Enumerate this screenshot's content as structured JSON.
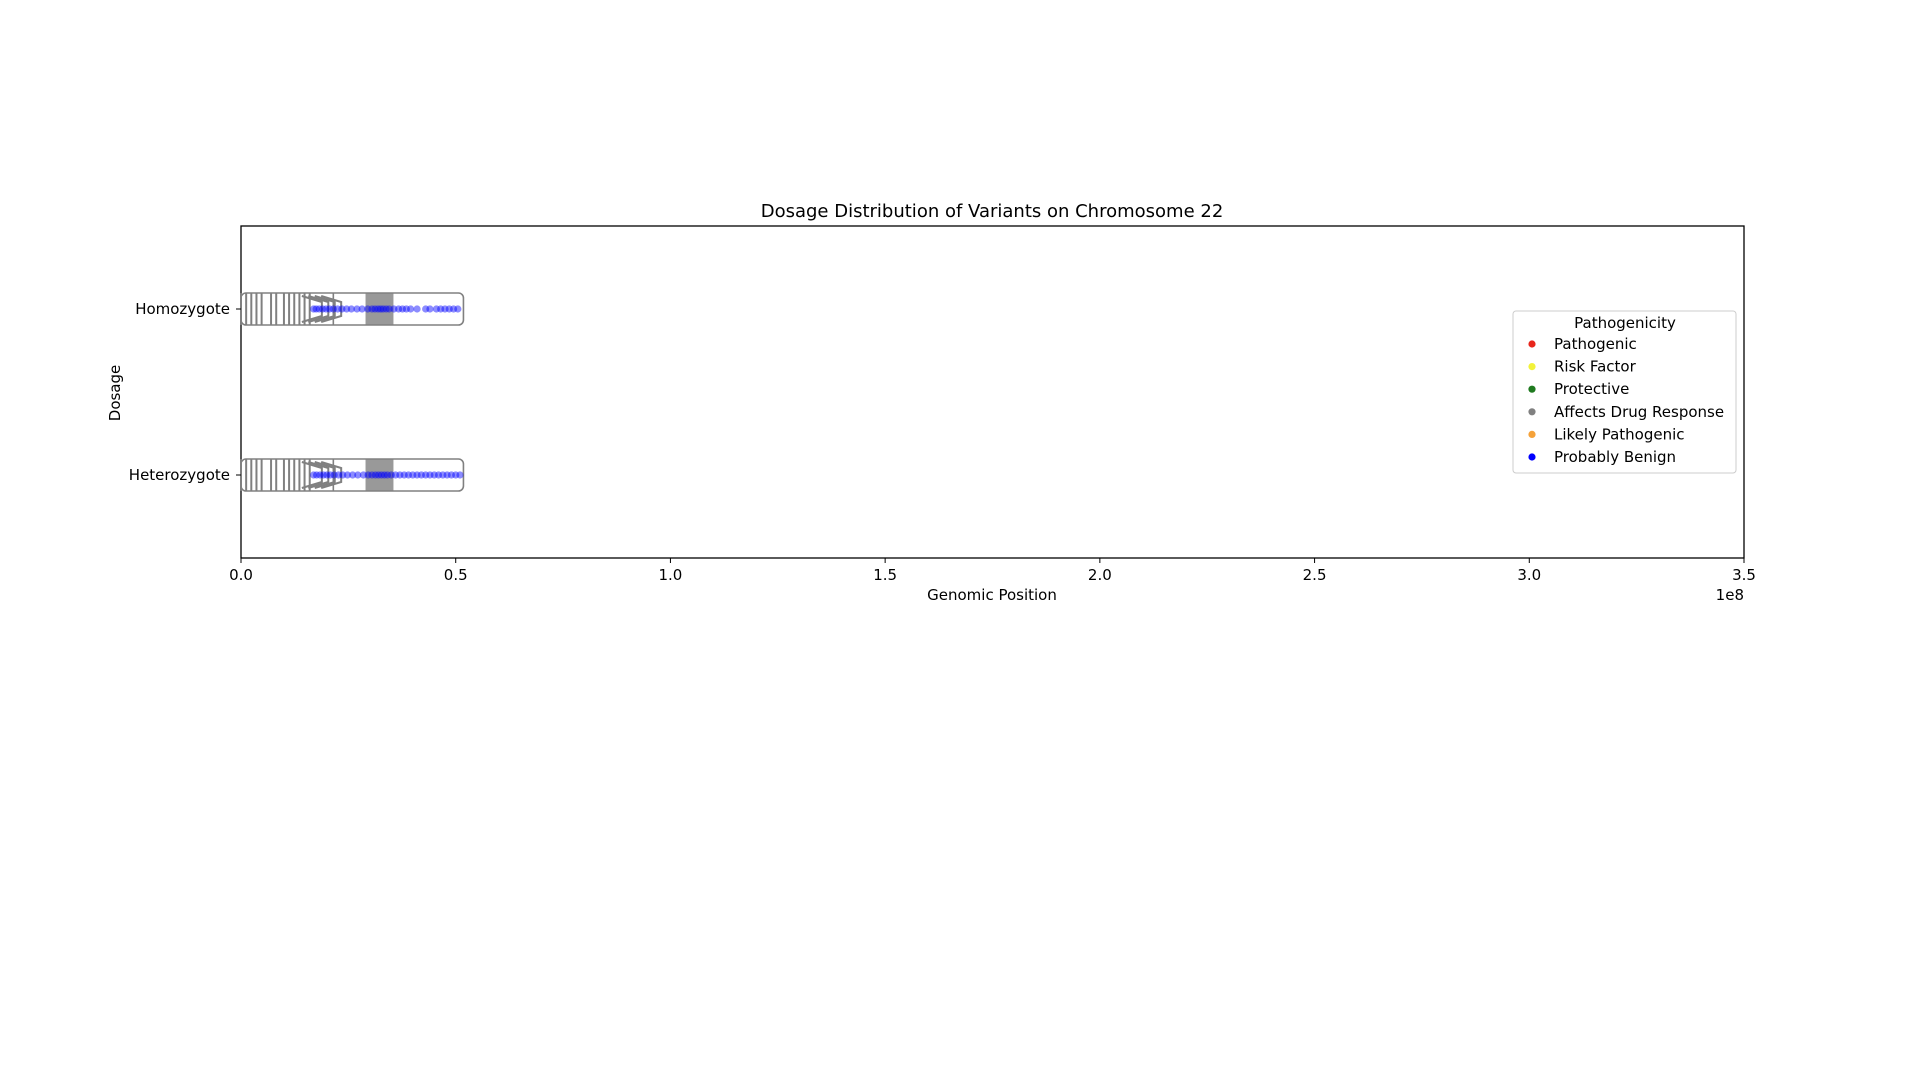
{
  "chart_data": {
    "type": "scatter",
    "title": "Dosage Distribution of Variants on Chromosome 22",
    "xlabel": "Genomic Position",
    "ylabel": "Dosage",
    "x_offset_label": "1e8",
    "xlim": [
      0,
      350000000
    ],
    "xticks": [
      0,
      50000000,
      100000000,
      150000000,
      200000000,
      250000000,
      300000000,
      350000000
    ],
    "xtick_labels": [
      "0.0",
      "0.5",
      "1.0",
      "1.5",
      "2.0",
      "2.5",
      "3.0",
      "3.5"
    ],
    "categories": [
      "Homozygote",
      "Heterozygote"
    ],
    "grid": false,
    "legend": {
      "title": "Pathogenicity",
      "placement": "center-right",
      "entries": [
        {
          "label": "Pathogenic",
          "color": "#e8261c"
        },
        {
          "label": "Risk Factor",
          "color": "#f2f23a"
        },
        {
          "label": "Protective",
          "color": "#1f7a1f"
        },
        {
          "label": "Affects Drug Response",
          "color": "#808080"
        },
        {
          "label": "Likely Pathogenic",
          "color": "#f5a23a"
        },
        {
          "label": "Probably Benign",
          "color": "#0000ff"
        }
      ]
    },
    "ideogram": {
      "chromosome_length": 51800000,
      "centromere": [
        29000000,
        35500000
      ],
      "outline_color": "#808080",
      "centromere_color": "#999999",
      "p_arm_stripes": [
        0,
        1200000,
        2400000,
        3600000,
        4800000,
        7000000,
        8200000,
        10000000,
        11200000,
        12400000,
        13600000,
        14800000,
        16000000
      ],
      "chevrons": [
        16500000,
        18000000,
        19500000,
        21000000
      ]
    },
    "series": [
      {
        "name": "Probably Benign",
        "color": "#0000ff",
        "points": [
          {
            "category": "Homozygote",
            "x": [
              16900000,
              17500000,
              18200000,
              19000000,
              19800000,
              20600000,
              21500000,
              22500000,
              23500000,
              24600000,
              25700000,
              27000000,
              28200000,
              29500000,
              30500000,
              31200000,
              31900000,
              32500000,
              33100000,
              33800000,
              34500000,
              35600000,
              36700000,
              37600000,
              38500000,
              39500000,
              41000000,
              43000000,
              44000000,
              45500000,
              46500000,
              47500000,
              48500000,
              49500000,
              50500000
            ]
          },
          {
            "category": "Heterozygote",
            "x": [
              16900000,
              17600000,
              18400000,
              19200000,
              20000000,
              20800000,
              21700000,
              22700000,
              23700000,
              24800000,
              26000000,
              27200000,
              28500000,
              29600000,
              30500000,
              31300000,
              32000000,
              32700000,
              33400000,
              34100000,
              35000000,
              36000000,
              37000000,
              38000000,
              39000000,
              40000000,
              41000000,
              42000000,
              43000000,
              44000000,
              45000000,
              46000000,
              47000000,
              48000000,
              49000000,
              50000000,
              51000000
            ]
          }
        ]
      }
    ]
  }
}
